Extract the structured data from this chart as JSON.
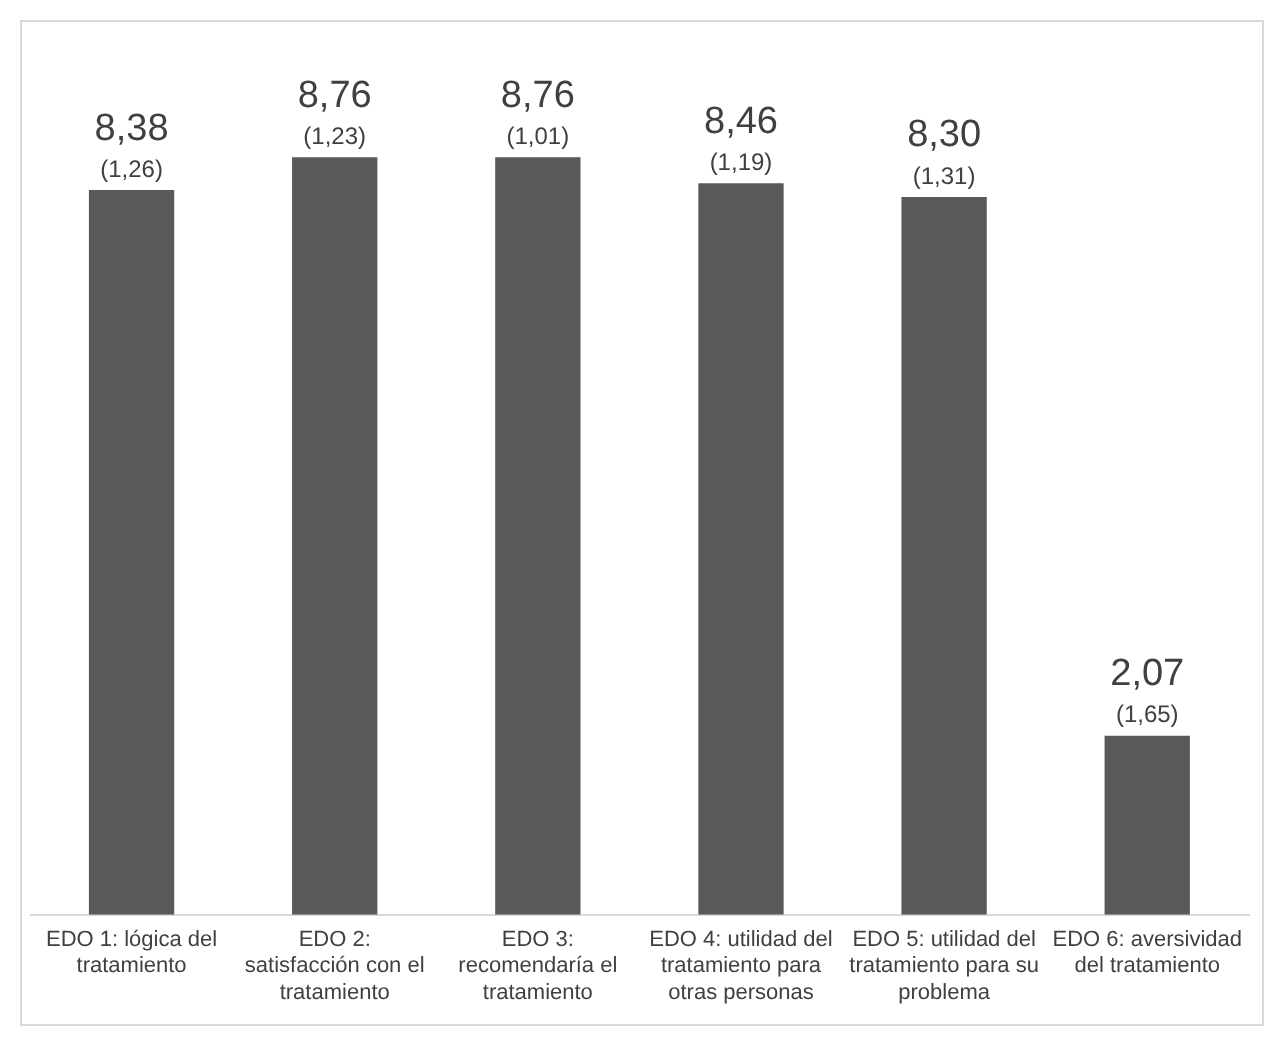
{
  "chart_data": {
    "type": "bar",
    "categories": [
      "EDO 1: lógica del tratamiento",
      "EDO 2: satisfacción con el tratamiento",
      "EDO 3: recomendaría el tratamiento",
      "EDO 4: utilidad del tratamiento para otras personas",
      "EDO 5: utilidad del tratamiento para su problema",
      "EDO 6: aversividad del tratamiento"
    ],
    "values": [
      8.38,
      8.76,
      8.76,
      8.46,
      8.3,
      2.07
    ],
    "value_labels": [
      "8,38",
      "8,76",
      "8,76",
      "8,46",
      "8,30",
      "2,07"
    ],
    "annotations": [
      {
        "text": "(1,26)",
        "x": "EDO 1: lógica del tratamiento",
        "y": 8.38
      },
      {
        "text": "(1,23)",
        "x": "EDO 2: satisfacción con el tratamiento",
        "y": 8.76
      },
      {
        "text": "(1,01)",
        "x": "EDO 3: recomendaría el tratamiento",
        "y": 8.76
      },
      {
        "text": "(1,19)",
        "x": "EDO 4: utilidad del tratamiento para otras personas",
        "y": 8.46
      },
      {
        "text": "(1,31)",
        "x": "EDO 5: utilidad del tratamiento para su problema",
        "y": 8.3
      },
      {
        "text": "(1,65)",
        "x": "EDO 6: aversividad del tratamiento",
        "y": 2.07
      }
    ],
    "color": "#595959",
    "grid": false,
    "legend": false
  }
}
